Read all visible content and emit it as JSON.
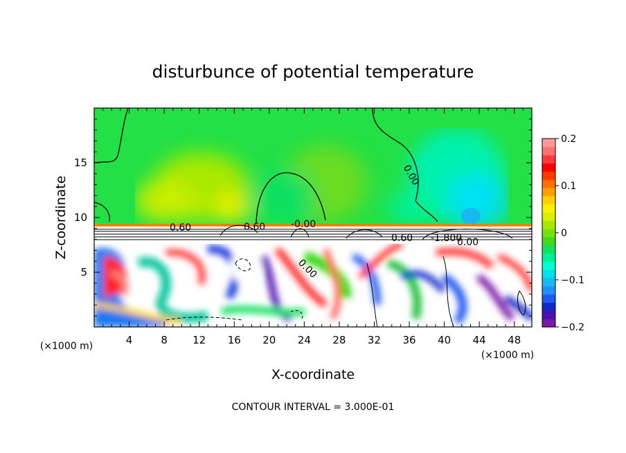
{
  "chart_data": {
    "type": "heatmap",
    "title": "disturbunce of potential temperature",
    "xlabel": "X-coordinate",
    "ylabel": "Z-coordinate",
    "x_unit": "(×1000 m)",
    "y_unit": "(×1000 m)",
    "xlim": [
      0,
      50
    ],
    "ylim": [
      0,
      20
    ],
    "x_ticks": [
      "4",
      "8",
      "12",
      "16",
      "20",
      "24",
      "28",
      "32",
      "36",
      "40",
      "44",
      "48"
    ],
    "y_ticks": [
      "5",
      "10",
      "15"
    ],
    "colorbar": {
      "range": [
        -0.2,
        0.2
      ],
      "tick_labels": [
        "0.2",
        "0.1",
        "0",
        "−0.1",
        "−0.2"
      ],
      "colors": [
        "#7a18a8",
        "#4a10b0",
        "#1028c8",
        "#2058f0",
        "#1e90ff",
        "#18b8f0",
        "#00e0f0",
        "#00ffd0",
        "#00f098",
        "#10e060",
        "#40d820",
        "#78e010",
        "#a8e800",
        "#d8f000",
        "#f8f000",
        "#ffd000",
        "#ffa000",
        "#ff7000",
        "#ff3800",
        "#ff0000",
        "#ff3838",
        "#ff7070",
        "#ff9898"
      ]
    },
    "contour_labels": [
      "0.00",
      "0.60",
      "0.60",
      "-0.00",
      "0.00",
      "0.60",
      "-1.800",
      "0.00",
      "0.00"
    ],
    "footer": "CONTOUR INTERVAL = 3.000E-01"
  }
}
